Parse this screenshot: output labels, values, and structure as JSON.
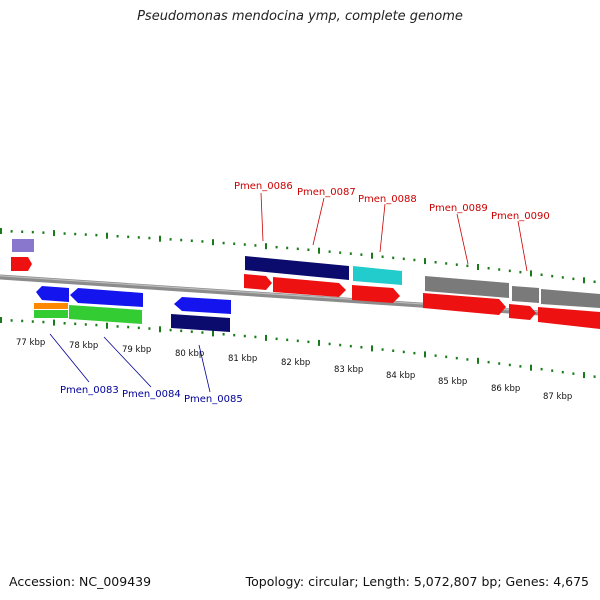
{
  "title": "Pseudomonas mendocina ymp, complete genome",
  "footer": {
    "accession": "Accession: NC_009439",
    "stats": "Topology: circular; Length: 5,072,807 bp; Genes: 4,675"
  },
  "colors": {
    "backbone": "#8c8c8c",
    "ruler_ticks": "#1a7a1a",
    "forward_label": "#cc0000",
    "reverse_label": "#000099",
    "cds_red": "#ee1111",
    "gene_navy": "#0b0b6e",
    "gene_blue": "#1414ee",
    "gene_cyan": "#22cccc",
    "gene_gray": "#7a7a7a",
    "gene_green": "#33cc33",
    "gene_orange": "#ff8800",
    "gene_lavender": "#8877cc"
  },
  "ruler": {
    "labels": [
      "77 kbp",
      "78 kbp",
      "79 kbp",
      "80 kbp",
      "81 kbp",
      "82 kbp",
      "83 kbp",
      "84 kbp",
      "85 kbp",
      "86 kbp",
      "87 kbp"
    ]
  },
  "forward_genes": [
    {
      "name": "Pmen_0086",
      "color": "forward_label"
    },
    {
      "name": "Pmen_0087",
      "color": "forward_label"
    },
    {
      "name": "Pmen_0088",
      "color": "forward_label"
    },
    {
      "name": "Pmen_0089",
      "color": "forward_label"
    },
    {
      "name": "Pmen_0090",
      "color": "forward_label"
    }
  ],
  "reverse_genes": [
    {
      "name": "Pmen_0083",
      "color": "reverse_label"
    },
    {
      "name": "Pmen_0084",
      "color": "reverse_label"
    },
    {
      "name": "Pmen_0085",
      "color": "reverse_label"
    }
  ]
}
